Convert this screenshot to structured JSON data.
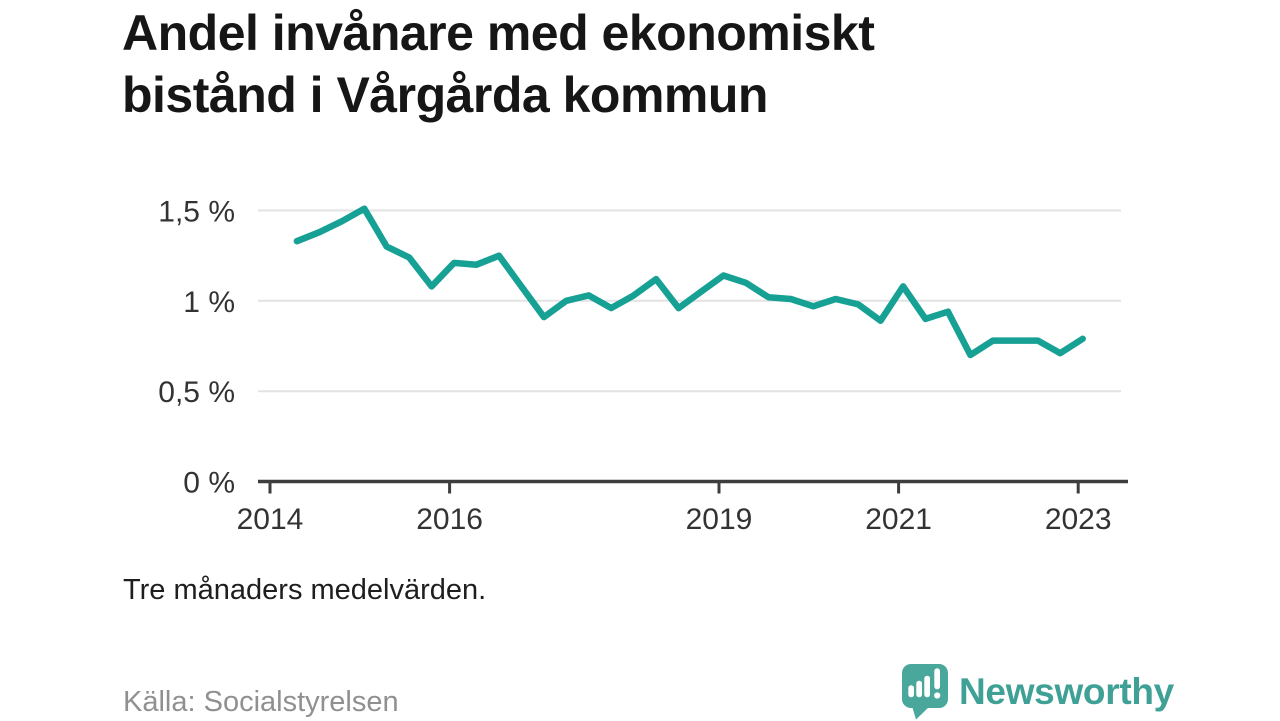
{
  "title": {
    "text": "Andel invånare med ekonomiskt bistånd i Vårgårda kommun",
    "lines": [
      "Andel invånare med ekonomiskt",
      "bistånd i Vårgårda kommun"
    ]
  },
  "footnote": "Tre månaders medelvärden.",
  "source": "Källa: Socialstyrelsen",
  "branding": {
    "wordmark": "Newsworthy",
    "logo_icon": "speech-bubble-with-bar-chart-and-exclamation"
  },
  "colors": {
    "line": "#16a194",
    "grid": "#e3e3e3",
    "axis": "#3d3d3d",
    "axis_label": "#333333",
    "title": "#161616",
    "footnote": "#1e1e1e",
    "source": "#909090",
    "logo_mark": "#4aa79b",
    "logo_text": "#3fa195"
  },
  "chart_data": {
    "type": "line",
    "title": "Andel invånare med ekonomiskt bistånd i Vårgårda kommun",
    "subtitle_note": "Tre månaders medelvärden.",
    "unit": "%",
    "decimal_style": "comma",
    "xlabel": "",
    "ylabel": "",
    "xlim": [
      2013.87,
      2023.55
    ],
    "ylim": [
      0,
      1.65
    ],
    "grid": "horizontal-only",
    "legend": "none",
    "y_ticks": [
      0,
      0.5,
      1,
      1.5
    ],
    "y_tick_labels": [
      "0 %",
      "0,5 %",
      "1 %",
      "1,5 %"
    ],
    "x_ticks": [
      2014,
      2016,
      2019,
      2021,
      2023
    ],
    "x_tick_labels": [
      "2014",
      "2016",
      "2019",
      "2021",
      "2023"
    ],
    "series": [
      {
        "name": "Andel invånare med ekonomiskt bistånd, Vårgårda kommun",
        "color": "#16a194",
        "x": [
          2014.3,
          2014.55,
          2014.8,
          2015.05,
          2015.3,
          2015.55,
          2015.8,
          2016.05,
          2016.3,
          2016.55,
          2016.8,
          2017.05,
          2017.3,
          2017.55,
          2017.8,
          2018.05,
          2018.3,
          2018.55,
          2018.8,
          2019.05,
          2019.3,
          2019.55,
          2019.8,
          2020.05,
          2020.3,
          2020.55,
          2020.8,
          2021.05,
          2021.3,
          2021.55,
          2021.8,
          2022.05,
          2022.3,
          2022.55,
          2022.8,
          2023.05
        ],
        "values": [
          1.33,
          1.38,
          1.44,
          1.51,
          1.3,
          1.24,
          1.08,
          1.21,
          1.2,
          1.25,
          1.08,
          0.91,
          1.0,
          1.03,
          0.96,
          1.03,
          1.12,
          0.96,
          1.05,
          1.14,
          1.1,
          1.02,
          1.01,
          0.97,
          1.01,
          0.98,
          0.89,
          1.08,
          0.9,
          0.94,
          0.7,
          0.78,
          0.78,
          0.78,
          0.71,
          0.79
        ]
      }
    ]
  }
}
